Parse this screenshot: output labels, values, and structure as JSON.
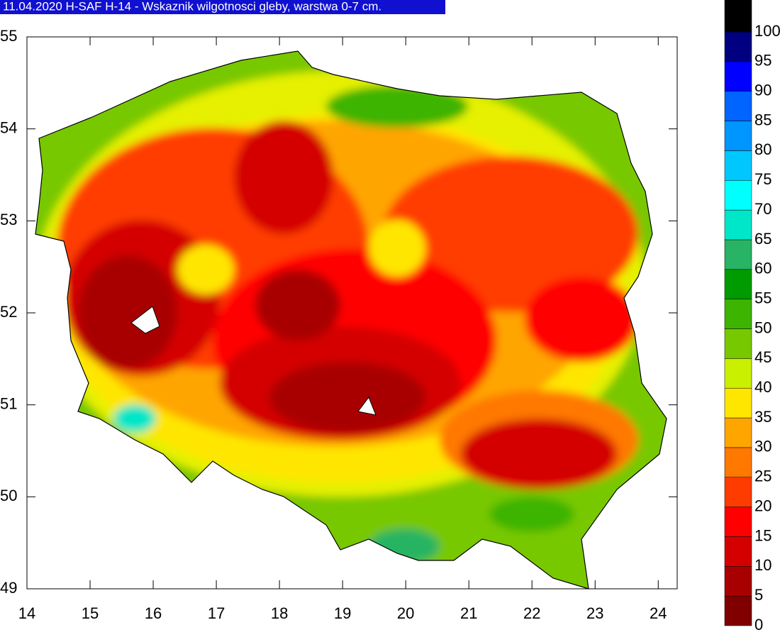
{
  "header": {
    "title": "11.04.2020 H-SAF H-14 - Wskaznik wilgotnosci gleby, warstwa 0-7 cm."
  },
  "map": {
    "xlim": [
      14,
      24.3
    ],
    "ylim": [
      49,
      55.0
    ],
    "xticks": [
      14,
      15,
      16,
      17,
      18,
      19,
      20,
      21,
      22,
      23,
      24
    ],
    "yticks": [
      49,
      50,
      51,
      52,
      53,
      54,
      55
    ]
  },
  "legend": {
    "levels": [
      0,
      5,
      10,
      15,
      20,
      25,
      30,
      35,
      40,
      45,
      50,
      55,
      60,
      65,
      70,
      75,
      80,
      85,
      90,
      95,
      100
    ],
    "colors": [
      "#800000",
      "#a80000",
      "#d40000",
      "#ff0000",
      "#ff3c00",
      "#ff7800",
      "#ffa500",
      "#ffe600",
      "#c8f000",
      "#78c800",
      "#3cb400",
      "#009b00",
      "#28b464",
      "#00e6c8",
      "#00ffff",
      "#00c8ff",
      "#0096ff",
      "#0064ff",
      "#0000ff",
      "#000080",
      "#000000"
    ]
  }
}
